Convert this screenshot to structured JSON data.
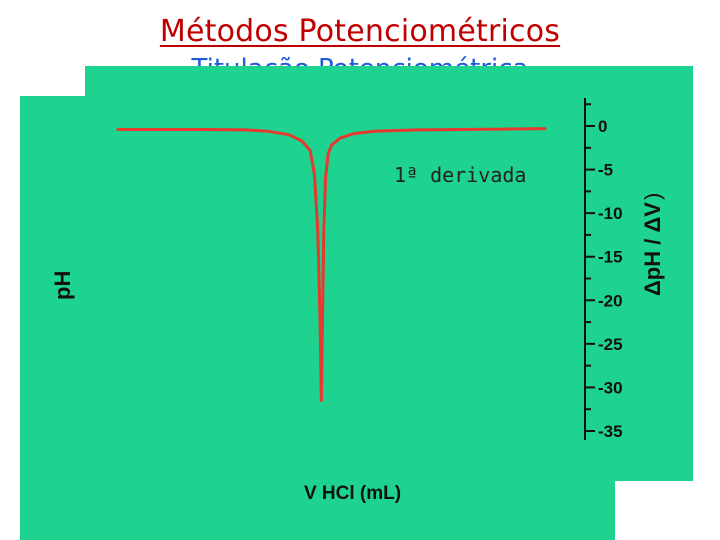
{
  "slide": {
    "title": "Métodos Potenciométricos",
    "subtitle": "Titulação Potenciométrica"
  },
  "colors": {
    "background_panel": "#1ed38f",
    "curve": "#e8392f",
    "title": "#c00000",
    "subtitle": "#1f5bd6",
    "axis": "#111111"
  },
  "chart_data": {
    "type": "line",
    "annotation": "1ª derivada",
    "xlabel": "V HCl (mL)",
    "ylabel_left": "pH",
    "ylabel_right": "ΔpH / ΔV",
    "y_axis_right": {
      "ticks": [
        0,
        -5,
        -10,
        -15,
        -20,
        -25,
        -30,
        -35
      ],
      "tick_labels": [
        "0",
        "-5",
        "-10",
        "-15",
        "-20",
        "-25",
        "-30",
        "-35"
      ],
      "ylim": [
        -37,
        2
      ]
    },
    "series": [
      {
        "values_description_free": true,
        "x": [
          0,
          10,
          20,
          30,
          35,
          40,
          43,
          45,
          46,
          46.8,
          47.3,
          47.6,
          47.9,
          48.2,
          48.6,
          49.2,
          50,
          52,
          55,
          60,
          70,
          80,
          90,
          100
        ],
        "y": [
          -0.4,
          -0.4,
          -0.4,
          -0.45,
          -0.6,
          -1.0,
          -1.7,
          -2.8,
          -5.5,
          -12,
          -22,
          -31.5,
          -22,
          -12,
          -6,
          -3.2,
          -2.2,
          -1.4,
          -0.9,
          -0.6,
          -0.45,
          -0.4,
          -0.35,
          -0.3
        ]
      }
    ],
    "xlim": [
      0,
      100
    ],
    "grid": false
  }
}
